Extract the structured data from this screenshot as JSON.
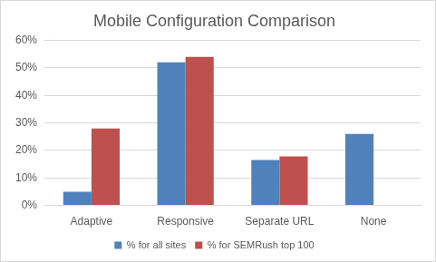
{
  "chart_data": {
    "type": "bar",
    "title": "Mobile Configuration Comparison",
    "categories": [
      "Adaptive",
      "Responsive",
      "Separate URL",
      "None"
    ],
    "series": [
      {
        "name": "% for all sites",
        "color": "#4f81bd",
        "values": [
          5,
          52,
          16.5,
          26
        ]
      },
      {
        "name": "% for SEMRush top 100",
        "color": "#c0504d",
        "values": [
          28,
          54,
          17.8,
          0
        ]
      }
    ],
    "ylim": [
      0,
      60
    ],
    "yticks": [
      {
        "value": 0,
        "label": "0%"
      },
      {
        "value": 10,
        "label": "10%"
      },
      {
        "value": 20,
        "label": "20%"
      },
      {
        "value": 30,
        "label": "30%"
      },
      {
        "value": 40,
        "label": "40%"
      },
      {
        "value": 50,
        "label": "50%"
      },
      {
        "value": 60,
        "label": "60%"
      }
    ],
    "grid": true,
    "legend": "bottom"
  }
}
